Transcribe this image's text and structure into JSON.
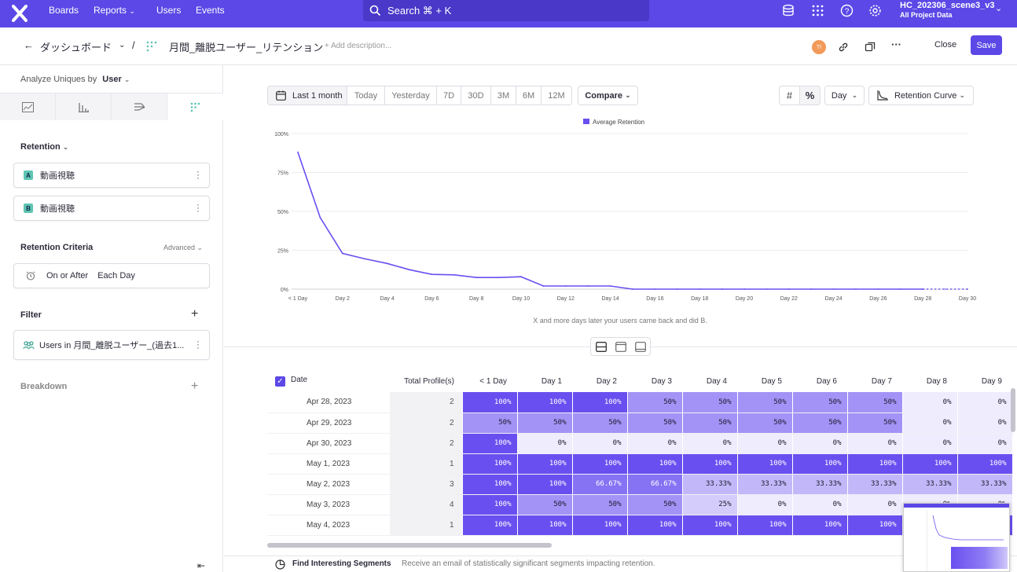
{
  "topbar": {
    "nav": [
      "Boards",
      "Reports",
      "Users",
      "Events"
    ],
    "search_label": "Search ⌘ + K",
    "project_name": "HC_202306_scene3_v3",
    "project_sub": "All Project Data",
    "bg_color": "#5b48e6"
  },
  "header": {
    "breadcrumb_parent": "ダッシュボード",
    "separator": "/",
    "report_title": "月間_離脱ユーザー_リテンション",
    "description_placeholder": "+ Add description...",
    "avatar_initials": "TI",
    "close_label": "Close",
    "save_label": "Save"
  },
  "sidebar": {
    "analyze_label": "Analyze Uniques by",
    "analyze_value": "User",
    "retention_label": "Retention",
    "event_a": {
      "letter": "A",
      "name": "動画視聴"
    },
    "event_b": {
      "letter": "B",
      "name": "動画視聴"
    },
    "criteria_label": "Retention Criteria",
    "advanced_label": "Advanced",
    "criteria_on": "On or After",
    "criteria_each": "Each Day",
    "filter_label": "Filter",
    "filter_value": "Users in 月間_離脱ユーザー_(過去1...",
    "breakdown_label": "Breakdown"
  },
  "controls": {
    "date_ranges": [
      "Last 1 month",
      "Today",
      "Yesterday",
      "7D",
      "30D",
      "3M",
      "6M",
      "12M"
    ],
    "selected_range": "Last 1 month",
    "compare_label": "Compare",
    "interval": "Day",
    "chart_type": "Retention Curve"
  },
  "chart_data": {
    "type": "line",
    "legend": "Average Retention",
    "series_color": "#6a4ff0",
    "x": [
      "< 1 Day",
      "Day 1",
      "Day 2",
      "Day 3",
      "Day 4",
      "Day 5",
      "Day 6",
      "Day 7",
      "Day 8",
      "Day 9",
      "Day 10",
      "Day 11",
      "Day 12",
      "Day 13",
      "Day 14",
      "Day 15",
      "Day 16",
      "Day 17",
      "Day 18",
      "Day 19",
      "Day 20",
      "Day 21",
      "Day 22",
      "Day 23",
      "Day 24",
      "Day 25",
      "Day 26",
      "Day 27",
      "Day 28",
      "Day 29",
      "Day 30"
    ],
    "values": [
      88,
      46,
      23,
      19.5,
      16.5,
      12.5,
      9.5,
      9.2,
      7.5,
      7.5,
      8,
      2,
      2,
      2,
      2,
      0,
      0,
      0,
      0,
      0,
      0,
      0,
      0,
      0,
      0,
      0,
      0,
      0,
      0,
      0,
      0
    ],
    "tick_labels_x": [
      "< 1 Day",
      "Day 2",
      "Day 4",
      "Day 6",
      "Day 8",
      "Day 10",
      "Day 12",
      "Day 14",
      "Day 16",
      "Day 18",
      "Day 20",
      "Day 22",
      "Day 24",
      "Day 26",
      "Day 28",
      "Day 30"
    ],
    "tick_labels_y": [
      "0%",
      "25%",
      "50%",
      "75%",
      "100%"
    ],
    "ylim": [
      0,
      100
    ],
    "xlabel": "X and more days later your users came back and did B.",
    "grid": true,
    "legend_position": "top-center"
  },
  "table": {
    "headers": [
      "Date",
      "Total Profile(s)",
      "< 1 Day",
      "Day 1",
      "Day 2",
      "Day 3",
      "Day 4",
      "Day 5",
      "Day 6",
      "Day 7",
      "Day 8",
      "Day 9"
    ],
    "rows": [
      {
        "date": "Apr 28, 2023",
        "total": "2",
        "cells": [
          "100%",
          "100%",
          "100%",
          "50%",
          "50%",
          "50%",
          "50%",
          "50%",
          "0%",
          "0%"
        ]
      },
      {
        "date": "Apr 29, 2023",
        "total": "2",
        "cells": [
          "50%",
          "50%",
          "50%",
          "50%",
          "50%",
          "50%",
          "50%",
          "50%",
          "0%",
          "0%"
        ]
      },
      {
        "date": "Apr 30, 2023",
        "total": "2",
        "cells": [
          "100%",
          "0%",
          "0%",
          "0%",
          "0%",
          "0%",
          "0%",
          "0%",
          "0%",
          "0%"
        ]
      },
      {
        "date": "May 1, 2023",
        "total": "1",
        "cells": [
          "100%",
          "100%",
          "100%",
          "100%",
          "100%",
          "100%",
          "100%",
          "100%",
          "100%",
          "100%"
        ]
      },
      {
        "date": "May 2, 2023",
        "total": "3",
        "cells": [
          "100%",
          "100%",
          "66.67%",
          "66.67%",
          "33.33%",
          "33.33%",
          "33.33%",
          "33.33%",
          "33.33%",
          "33.33%"
        ]
      },
      {
        "date": "May 3, 2023",
        "total": "4",
        "cells": [
          "100%",
          "50%",
          "50%",
          "50%",
          "25%",
          "0%",
          "0%",
          "0%",
          "0%",
          "0%"
        ]
      },
      {
        "date": "May 4, 2023",
        "total": "1",
        "cells": [
          "100%",
          "100%",
          "100%",
          "100%",
          "100%",
          "100%",
          "100%",
          "100%",
          "100%",
          "100%"
        ]
      }
    ]
  },
  "footer": {
    "title": "Find Interesting Segments",
    "text": "Receive an email of statistically significant segments impacting retention."
  }
}
